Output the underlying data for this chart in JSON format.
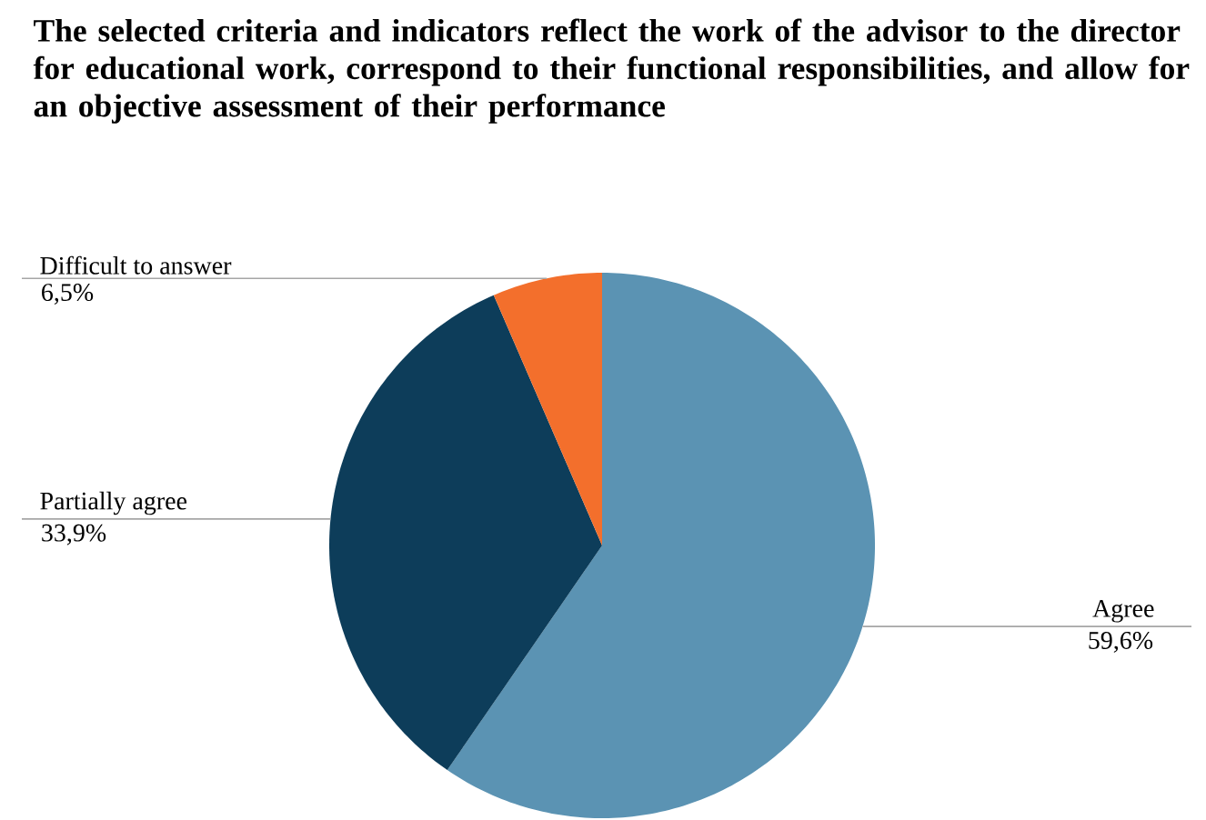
{
  "chart_data": {
    "type": "pie",
    "title": "The selected criteria and indicators reflect the work of the advisor to the director for educational work, correspond to their functional responsibilities, and allow for an objective assessment of their performance",
    "categories": [
      "Agree",
      "Partially agree",
      "Difficult to answer"
    ],
    "values": [
      59.6,
      33.9,
      6.5
    ],
    "value_labels": [
      "59,6%",
      "33,9%",
      "6,5%"
    ],
    "colors": [
      "#5b93b3",
      "#0d3d5a",
      "#f36f2c"
    ]
  }
}
